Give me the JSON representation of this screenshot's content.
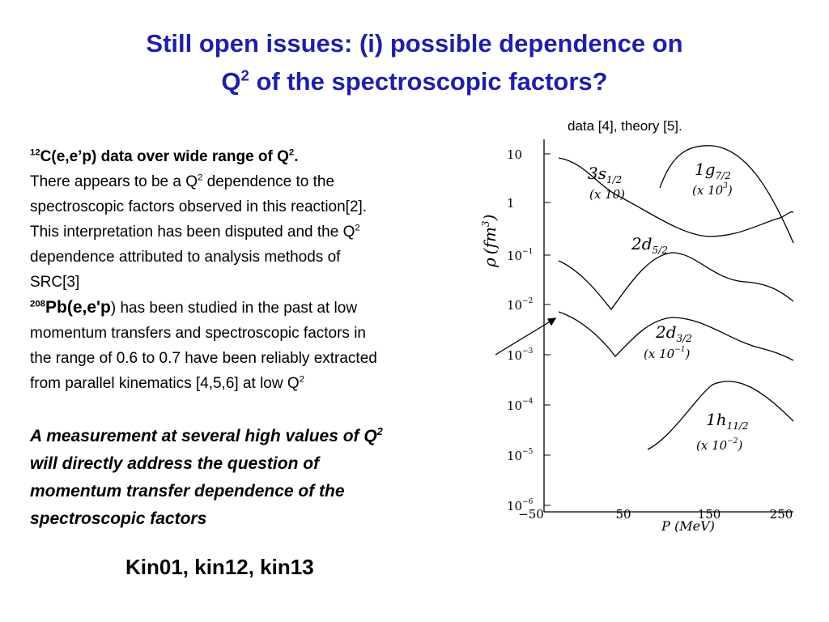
{
  "title": {
    "line1": "Still open issues: (i) possible dependence on",
    "q": "Q",
    "sup": "2",
    "line2": " of the spectroscopic factors?"
  },
  "caption": "data [4], theory [5].",
  "body": {
    "a": "12",
    "b": "C(e,e’p) data over wide range of Q",
    "c": "2",
    "d": ".",
    "e": "There appears to be a Q",
    "f": "2",
    "g": " dependence to the",
    "h": "spectroscopic factors observed in this reaction[2].",
    "i": "This interpretation has been disputed and the Q",
    "j": "2",
    "k": "dependence attributed to analysis methods of",
    "l": "SRC[3]",
    "m": "208",
    "n": "Pb(e,e'p",
    "o": ") has been studied in the past at low",
    "p": "momentum transfers and spectroscopic factors in",
    "q": "the range of 0.6 to 0.7 have been reliably extracted",
    "r": "from parallel kinematics [4,5,6] at low Q",
    "s": "2"
  },
  "conclusion": {
    "a": "A measurement at several high values of Q",
    "b": "2",
    "c": "will directly  address the question of",
    "d": "momentum transfer dependence of the",
    "e": "spectroscopic factors"
  },
  "footer": "Kin01, kin12, kin13",
  "figure": {
    "y_ticks": [
      {
        "base": "10"
      },
      {
        "base": "1"
      },
      {
        "base": "10",
        "exp": "−1"
      },
      {
        "base": "10",
        "exp": "−2"
      },
      {
        "base": "10",
        "exp": "−3"
      },
      {
        "base": "10",
        "exp": "−4"
      },
      {
        "base": "10",
        "exp": "−5"
      },
      {
        "base": "10",
        "exp": "−6"
      }
    ],
    "x_ticks": [
      "−50",
      "50",
      "150",
      "250"
    ],
    "x_label": "P (MeV)",
    "y_label": {
      "sym": "ρ",
      "unit": "(fm",
      "exp": "3",
      "close": ")"
    },
    "labels": [
      {
        "n": "3s",
        "sub": "1/2"
      },
      {
        "n": "(x 10)"
      },
      {
        "n": "1g",
        "sub": "7/2"
      },
      {
        "n": "(x 10",
        "exp": "3",
        "close": ")"
      },
      {
        "n": "2d",
        "sub": "5/2"
      },
      {
        "n": "2d",
        "sub": "3/2"
      },
      {
        "n": "(x 10",
        "exp": "−1",
        "close": ")"
      },
      {
        "n": "1h",
        "sub": "11/2"
      },
      {
        "n": "(x 10",
        "exp": "−2",
        "close": ")"
      }
    ]
  }
}
